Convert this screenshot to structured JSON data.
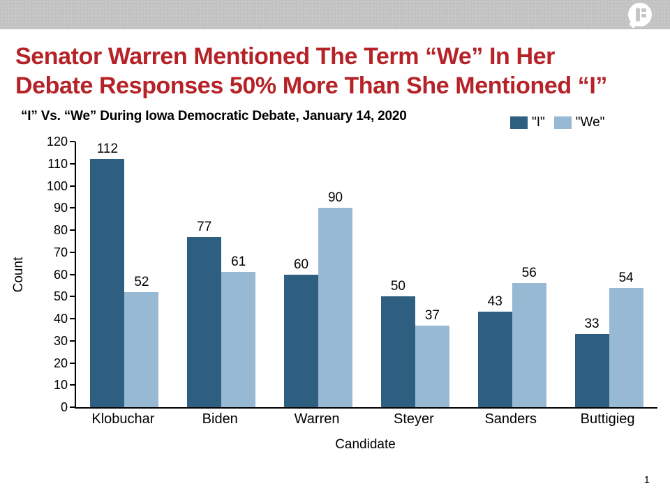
{
  "top_bar": {
    "logo": "speech-bubble-f-logo"
  },
  "headline": {
    "lines": [
      "Senator Warren Mentioned The Term “We” In Her",
      "Debate Responses 50% More Than She Mentioned “I”"
    ],
    "color": "#b52227"
  },
  "page_number": "1",
  "chart_data": {
    "type": "bar",
    "title": "“I” Vs. “We” During Iowa Democratic Debate, January 14, 2020",
    "categories": [
      "Klobuchar",
      "Biden",
      "Warren",
      "Steyer",
      "Sanders",
      "Buttigieg"
    ],
    "series": [
      {
        "name": "\"I\"",
        "color": "#2e5f80",
        "values": [
          112,
          77,
          60,
          50,
          43,
          33
        ]
      },
      {
        "name": "\"We\"",
        "color": "#97b9d4",
        "values": [
          52,
          61,
          90,
          37,
          56,
          54
        ]
      }
    ],
    "xlabel": "Candidate",
    "ylabel": "Count",
    "ylim": [
      0,
      120
    ],
    "ytick_step": 10,
    "legend_position": "top-right",
    "grid": false
  }
}
